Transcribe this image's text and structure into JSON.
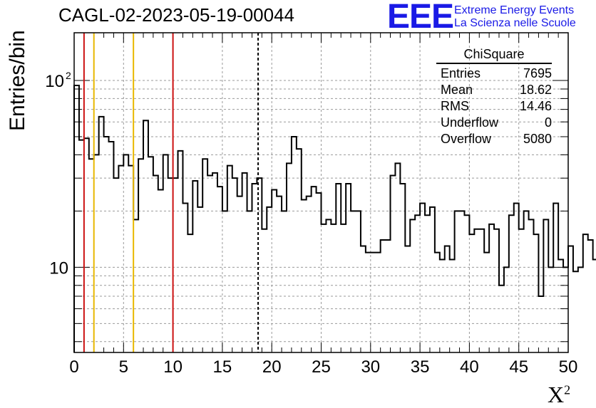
{
  "header": {
    "title": "CAGL-02-2023-05-19-00044",
    "logo_text": "EEE",
    "logo_line1": "Extreme Energy Events",
    "logo_line2": "La Scienza nelle Scuole"
  },
  "colors": {
    "logo": "#1a1ae6",
    "red_line": "#cc1111",
    "yellow_line": "#e8b800",
    "grid": "#999999"
  },
  "stats": {
    "title": "ChiSquare",
    "rows": [
      {
        "label": "Entries",
        "value": "7695"
      },
      {
        "label": "Mean",
        "value": "18.62"
      },
      {
        "label": "RMS",
        "value": "14.46"
      },
      {
        "label": "Underflow",
        "value": "0"
      },
      {
        "label": "Overflow",
        "value": "5080"
      }
    ]
  },
  "chart_data": {
    "type": "histogram",
    "title": "CAGL-02-2023-05-19-00044",
    "xlabel": "χ²",
    "ylabel": "Entries/bin",
    "xlim": [
      0,
      50
    ],
    "ylim": [
      3.5,
      180
    ],
    "yscale": "log",
    "grid": true,
    "bin_width": 0.5,
    "x_ticks": [
      "0",
      "5",
      "10",
      "15",
      "20",
      "25",
      "30",
      "35",
      "40",
      "45",
      "50"
    ],
    "y_tick_labels": [
      "10",
      "10²"
    ],
    "values": [
      94,
      48,
      49,
      38,
      40,
      64,
      50,
      47,
      30,
      35,
      40,
      35,
      18,
      38,
      61,
      39,
      31,
      26,
      40,
      30,
      30,
      42,
      22,
      15,
      29,
      21,
      38,
      31,
      32,
      27,
      20,
      35,
      30,
      24,
      32,
      20,
      28,
      30,
      16,
      21,
      26,
      24,
      20,
      36,
      50,
      43,
      23,
      24,
      27,
      25,
      17,
      18,
      17,
      28,
      17,
      28,
      20,
      20,
      13,
      12,
      12,
      12,
      14,
      14,
      31,
      36,
      28,
      13,
      18,
      19,
      22,
      19,
      21,
      12,
      11,
      13,
      11,
      20,
      20,
      19,
      15,
      16,
      16,
      12,
      17,
      16,
      8,
      10,
      19,
      22,
      16,
      20,
      18,
      15,
      7,
      18,
      10,
      22,
      11,
      10,
      13,
      9.5,
      10,
      15,
      14,
      11
    ],
    "vlines": [
      {
        "x": 1,
        "color": "red"
      },
      {
        "x": 2,
        "color": "yellow"
      },
      {
        "x": 6,
        "color": "yellow"
      },
      {
        "x": 10,
        "color": "red"
      },
      {
        "x": 18.62,
        "color": "black",
        "style": "dashed"
      }
    ]
  }
}
